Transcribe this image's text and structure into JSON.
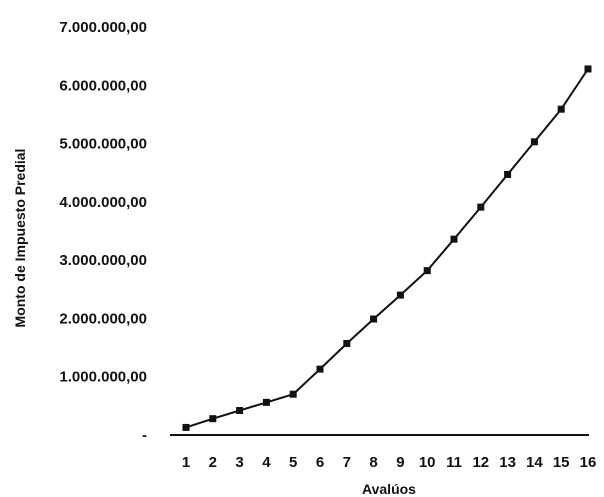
{
  "chart_data": {
    "type": "line",
    "title": "",
    "xlabel": "Avalúos",
    "ylabel": "Monto de Impuesto Predial",
    "x": [
      1,
      2,
      3,
      4,
      5,
      6,
      7,
      8,
      9,
      10,
      11,
      12,
      13,
      14,
      15,
      16
    ],
    "x_tick_labels": [
      "1",
      "2",
      "3",
      "4",
      "5",
      "6",
      "7",
      "8",
      "9",
      "10",
      "11",
      "12",
      "13",
      "14",
      "15",
      "16"
    ],
    "y_ticks": [
      0,
      1000000,
      2000000,
      3000000,
      4000000,
      5000000,
      6000000,
      7000000
    ],
    "y_tick_labels": [
      "-",
      "1.000.000,00",
      "2.000.000,00",
      "3.000.000,00",
      "4.000.000,00",
      "5.000.000,00",
      "6.000.000,00",
      "7.000.000,00"
    ],
    "ylim": [
      0,
      7000000
    ],
    "series": [
      {
        "values": [
          130000,
          280000,
          420000,
          560000,
          700000,
          1130000,
          1570000,
          1990000,
          2400000,
          2820000,
          3360000,
          3910000,
          4470000,
          5030000,
          5590000,
          6280000
        ]
      }
    ],
    "grid": false,
    "legend": "none",
    "line_color": "#111111",
    "marker": "square"
  }
}
